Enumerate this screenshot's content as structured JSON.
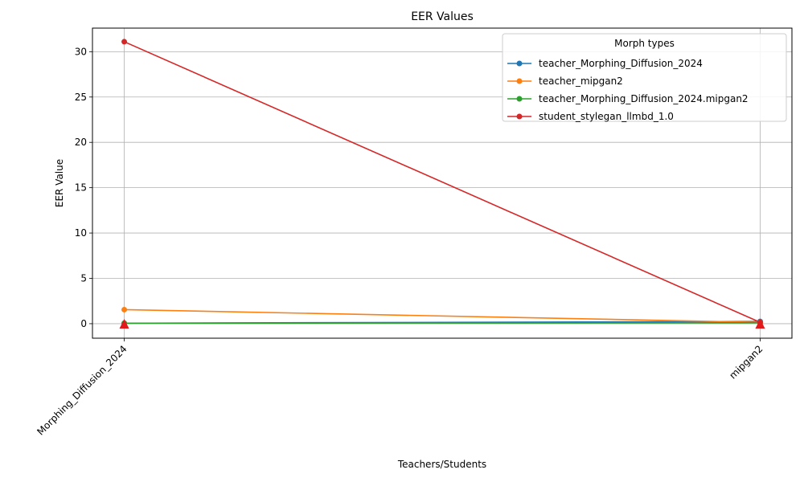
{
  "chart_data": {
    "type": "line",
    "title": "EER Values",
    "xlabel": "Teachers/Students",
    "ylabel": "EER Value",
    "categories": [
      "Morphing_Diffusion_2024",
      "mipgan2"
    ],
    "ylim": [
      -1.6,
      32.6
    ],
    "yticks": [
      0,
      5,
      10,
      15,
      20,
      25,
      30
    ],
    "grid": true,
    "legend": {
      "title": "Morph types",
      "placement": "top-right"
    },
    "series": [
      {
        "name": "teacher_Morphing_Diffusion_2024",
        "color": "#1f77b4",
        "values": [
          0.05,
          0.25
        ]
      },
      {
        "name": "teacher_mipgan2",
        "color": "#ff7f0e",
        "values": [
          1.55,
          0.15
        ]
      },
      {
        "name": "teacher_Morphing_Diffusion_2024.mipgan2",
        "color": "#2ca02c",
        "values": [
          0.05,
          0.1
        ]
      },
      {
        "name": "student_stylegan_llmbd_1.0",
        "color": "#d62728",
        "values": [
          31.1,
          0.15
        ]
      }
    ],
    "annotations": [
      {
        "marker": "triangle",
        "color": "#e31a1c",
        "category": "Morphing_Diffusion_2024",
        "value": 0
      },
      {
        "marker": "triangle",
        "color": "#e31a1c",
        "category": "mipgan2",
        "value": 0
      }
    ]
  }
}
